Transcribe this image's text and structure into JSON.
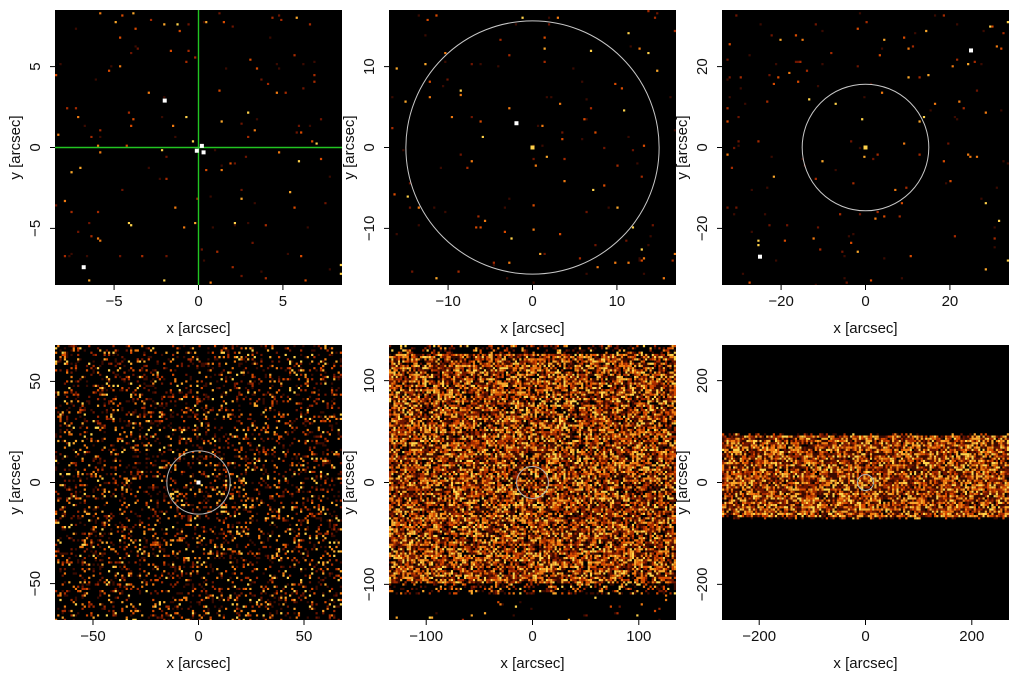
{
  "chart_data": [
    {
      "type": "heatmap",
      "panel": "top-left",
      "xlabel": "x [arcsec]",
      "ylabel": "y [arcsec]",
      "xlim": [
        -8.5,
        8.5
      ],
      "ylim": [
        -8.5,
        8.5
      ],
      "xticks": [
        -5,
        0,
        5
      ],
      "yticks": [
        -5,
        0,
        5
      ],
      "tick_labels_x": [
        "−5",
        "0",
        "5"
      ],
      "tick_labels_y": [
        "−5",
        "0",
        "5"
      ],
      "background": "#000000",
      "noise_density": 0.01,
      "band_halfwidth": null,
      "band_center": 0,
      "circle": null,
      "crosshair": {
        "x": 0,
        "y": 0,
        "color": "#22c422"
      },
      "points": [
        {
          "x": -2.0,
          "y": 2.9,
          "color": "#ffffff"
        },
        {
          "x": 0.2,
          "y": 0.1,
          "color": "#ffffff"
        },
        {
          "x": -0.1,
          "y": -0.2,
          "color": "#ffffff"
        },
        {
          "x": 0.3,
          "y": -0.3,
          "color": "#ffffff"
        },
        {
          "x": -6.8,
          "y": -7.4,
          "color": "#ffffff"
        }
      ]
    },
    {
      "type": "heatmap",
      "panel": "top-middle",
      "xlabel": "x [arcsec]",
      "ylabel": "y [arcsec]",
      "xlim": [
        -17,
        17
      ],
      "ylim": [
        -17,
        17
      ],
      "xticks": [
        -10,
        0,
        10
      ],
      "yticks": [
        -10,
        0,
        10
      ],
      "tick_labels_x": [
        "−10",
        "0",
        "10"
      ],
      "tick_labels_y": [
        "−10",
        "0",
        "10"
      ],
      "background": "#000000",
      "noise_density": 0.008,
      "band_halfwidth": null,
      "band_center": 0,
      "circle": {
        "x": 0,
        "y": 0,
        "r": 15,
        "color": "#c8c8c8"
      },
      "crosshair": null,
      "points": [
        {
          "x": 0,
          "y": 0,
          "color": "#ffd24a"
        },
        {
          "x": -1.9,
          "y": 3.0,
          "color": "#ffffff"
        }
      ]
    },
    {
      "type": "heatmap",
      "panel": "top-right",
      "xlabel": "x [arcsec]",
      "ylabel": "y [arcsec]",
      "xlim": [
        -34,
        34
      ],
      "ylim": [
        -34,
        34
      ],
      "xticks": [
        -20,
        0,
        20
      ],
      "yticks": [
        -20,
        0,
        20
      ],
      "tick_labels_x": [
        "−20",
        "0",
        "20"
      ],
      "tick_labels_y": [
        "−20",
        "0",
        "20"
      ],
      "background": "#000000",
      "noise_density": 0.01,
      "band_halfwidth": null,
      "band_center": 0,
      "circle": {
        "x": 0,
        "y": 0,
        "r": 15,
        "color": "#c8c8c8"
      },
      "crosshair": null,
      "points": [
        {
          "x": 0,
          "y": 0,
          "color": "#ffd24a"
        },
        {
          "x": 25,
          "y": 24,
          "color": "#ffffff"
        },
        {
          "x": -25,
          "y": -27,
          "color": "#ffffff"
        }
      ]
    },
    {
      "type": "heatmap",
      "panel": "bottom-left",
      "xlabel": "x [arcsec]",
      "ylabel": "y [arcsec]",
      "xlim": [
        -68,
        68
      ],
      "ylim": [
        -68,
        68
      ],
      "xticks": [
        -50,
        0,
        50
      ],
      "yticks": [
        -50,
        0,
        50
      ],
      "tick_labels_x": [
        "−50",
        "0",
        "50"
      ],
      "tick_labels_y": [
        "−50",
        "0",
        "50"
      ],
      "background": "#000000",
      "noise_density": 0.22,
      "band_halfwidth": null,
      "band_center": 0,
      "circle": {
        "x": 0,
        "y": 0,
        "r": 15,
        "color": "#b4b4b4"
      },
      "crosshair": null,
      "points": [
        {
          "x": 0,
          "y": 0,
          "color": "#ffffff"
        }
      ]
    },
    {
      "type": "heatmap",
      "panel": "bottom-middle",
      "xlabel": "x [arcsec]",
      "ylabel": "y [arcsec]",
      "xlim": [
        -135,
        135
      ],
      "ylim": [
        -135,
        135
      ],
      "xticks": [
        -100,
        0,
        100
      ],
      "yticks": [
        -100,
        0,
        100
      ],
      "tick_labels_x": [
        "−100",
        "0",
        "100"
      ],
      "tick_labels_y": [
        "−100",
        "0",
        "100"
      ],
      "background": "#000000",
      "noise_density": 0.02,
      "band_halfwidth": 113,
      "band_center": 13,
      "band_density": 0.85,
      "circle": {
        "x": 0,
        "y": 0,
        "r": 15,
        "color": "#b4b4b4"
      },
      "crosshair": null,
      "points": []
    },
    {
      "type": "heatmap",
      "panel": "bottom-right",
      "xlabel": "x [arcsec]",
      "ylabel": "y [arcsec]",
      "xlim": [
        -270,
        270
      ],
      "ylim": [
        -270,
        270
      ],
      "xticks": [
        -200,
        0,
        200
      ],
      "yticks": [
        -200,
        0,
        200
      ],
      "tick_labels_x": [
        "−200",
        "0",
        "200"
      ],
      "tick_labels_y": [
        "−200",
        "0",
        "200"
      ],
      "background": "#000000",
      "noise_density": 0.0,
      "band_halfwidth": 80,
      "band_center": 12,
      "band_density": 0.95,
      "circle": {
        "x": 0,
        "y": 0,
        "r": 15,
        "color": "#b4b4b4"
      },
      "crosshair": null,
      "points": []
    }
  ]
}
